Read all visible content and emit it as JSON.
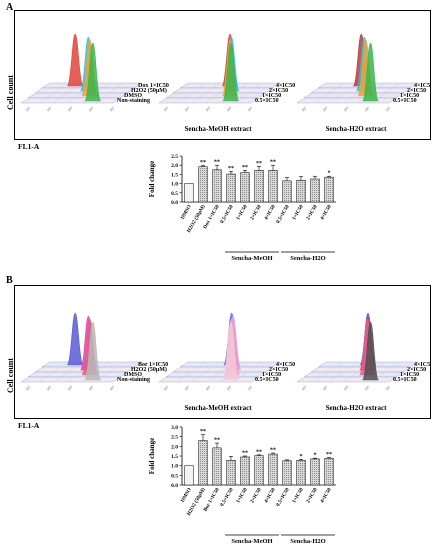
{
  "panels": [
    {
      "id": "A",
      "label": "A",
      "y_axis_label": "Cell count",
      "x_axis_label": "FL1-A",
      "flow": {
        "groups": [
          {
            "name": "control",
            "caption": "",
            "rows": [
              "Dox 1×IC50",
              "H2O2 (50μM)",
              "DMSO",
              "Non-staining"
            ],
            "peaks": [
              {
                "color": "#e0443c",
                "pos": 0.3
              },
              {
                "color": "#2bbfe0",
                "pos": 0.54
              },
              {
                "color": "#f0a23a",
                "pos": 0.64
              },
              {
                "color": "#3bb54a",
                "pos": 0.76
              }
            ]
          },
          {
            "name": "methanol",
            "caption": "Sencha-MeOH extract",
            "rows": [
              "4×IC50",
              "2×IC50",
              "1×IC50",
              "0.5×IC50"
            ],
            "peaks": [
              {
                "color": "#e0443c",
                "pos": 0.5
              },
              {
                "color": "#2bbfe0",
                "pos": 0.6
              },
              {
                "color": "#f0a23a",
                "pos": 0.67
              },
              {
                "color": "#3bb54a",
                "pos": 0.76
              }
            ]
          },
          {
            "name": "water",
            "caption": "Sencha-H2O extract",
            "rows": [
              "4×IC50",
              "2×IC50",
              "1×IC50",
              "0.5×IC50"
            ],
            "peaks": [
              {
                "color": "#c0383a",
                "pos": 0.42
              },
              {
                "color": "#2bbfe0",
                "pos": 0.54
              },
              {
                "color": "#f0a23a",
                "pos": 0.64
              },
              {
                "color": "#3bb54a",
                "pos": 0.78
              }
            ]
          }
        ],
        "bar_chart": {
          "type": "bar",
          "ylabel": "Fold change",
          "ylim": [
            0.0,
            2.5
          ],
          "yticks": [
            "0.0",
            "0.5",
            "1.0",
            "1.5",
            "2.0",
            "2.5"
          ],
          "categories": [
            "DMSO",
            "H2O2 (50μM)",
            "Dox 1×IC50",
            "0.5×IC50",
            "1×IC50",
            "2×IC50",
            "4×IC50",
            "0.5×IC50",
            "1×IC50",
            "2×IC50",
            "4×IC50"
          ],
          "values": [
            1.0,
            1.92,
            1.75,
            1.52,
            1.6,
            1.72,
            1.72,
            1.15,
            1.18,
            1.25,
            1.35
          ],
          "errors": [
            0.0,
            0.06,
            0.25,
            0.15,
            0.12,
            0.22,
            0.28,
            0.18,
            0.2,
            0.15,
            0.05
          ],
          "sig": [
            "",
            "**",
            "**",
            "**",
            "**",
            "**",
            "**",
            "",
            "",
            "",
            "*"
          ],
          "group_labels": [
            {
              "text": "Sencha-MeOH",
              "from": 3,
              "to": 6
            },
            {
              "text": "Sencha-H2O",
              "from": 7,
              "to": 10
            }
          ]
        }
      }
    },
    {
      "id": "B",
      "label": "B",
      "y_axis_label": "Cell count",
      "x_axis_label": "FL1-A",
      "flow": {
        "groups": [
          {
            "name": "control",
            "caption": "",
            "rows": [
              "Bor 1×IC50",
              "H2O2 (50μM)",
              "DMSO",
              "Non-staining"
            ],
            "peaks": [
              {
                "color": "#5a5ad6",
                "pos": 0.3
              },
              {
                "color": "#e040c8",
                "pos": 0.54
              },
              {
                "color": "#e0607e",
                "pos": 0.64
              },
              {
                "color": "#b8b8b8",
                "pos": 0.76
              }
            ]
          },
          {
            "name": "methanol",
            "caption": "Sencha-MeOH extract",
            "rows": [
              "4×IC50",
              "2×IC50",
              "1×IC50",
              "0.5×IC50"
            ],
            "peaks": [
              {
                "color": "#6a6ae0",
                "pos": 0.52
              },
              {
                "color": "#e0a0e0",
                "pos": 0.62
              },
              {
                "color": "#f0a0c8",
                "pos": 0.69
              },
              {
                "color": "#f4c8d8",
                "pos": 0.76
              }
            ]
          },
          {
            "name": "water",
            "caption": "Sencha-H2O extract",
            "rows": [
              "4×IC50",
              "2×IC50",
              "1×IC50",
              "0.5×IC50"
            ],
            "peaks": [
              {
                "color": "#5a5ad6",
                "pos": 0.5
              },
              {
                "color": "#c04070",
                "pos": 0.58
              },
              {
                "color": "#e06090",
                "pos": 0.66
              },
              {
                "color": "#505050",
                "pos": 0.78
              }
            ]
          }
        ],
        "bar_chart": {
          "type": "bar",
          "ylabel": "Fold change",
          "ylim": [
            0.0,
            3.0
          ],
          "yticks": [
            "0.0",
            "0.5",
            "1.0",
            "1.5",
            "2.0",
            "2.5",
            "3.0"
          ],
          "categories": [
            "DMSO",
            "H2O2 (50μM)",
            "Bor 1×IC50",
            "0.5×IC50",
            "1×IC50",
            "2×IC50",
            "4×IC50",
            "0.5×IC50",
            "1×IC50",
            "2×IC50",
            "4×IC50"
          ],
          "values": [
            1.0,
            2.3,
            1.92,
            1.28,
            1.45,
            1.52,
            1.6,
            1.25,
            1.28,
            1.35,
            1.38
          ],
          "errors": [
            0.0,
            0.3,
            0.25,
            0.2,
            0.05,
            0.04,
            0.05,
            0.05,
            0.05,
            0.04,
            0.04
          ],
          "sig": [
            "",
            "**",
            "**",
            "",
            "**",
            "**",
            "**",
            "",
            "*",
            "*",
            "**"
          ],
          "group_labels": [
            {
              "text": "Sencha-MeOH",
              "from": 3,
              "to": 6
            },
            {
              "text": "Sencha-H2O",
              "from": 7,
              "to": 10
            }
          ]
        }
      }
    }
  ],
  "chart_data": [
    {
      "type": "bar",
      "ylabel": "Fold change",
      "ylim": [
        0.0,
        2.5
      ],
      "categories": [
        "DMSO",
        "H2O2 (50μM)",
        "Dox 1×IC50",
        "0.5×IC50",
        "1×IC50",
        "2×IC50",
        "4×IC50",
        "0.5×IC50",
        "1×IC50",
        "2×IC50",
        "4×IC50"
      ],
      "values": [
        1.0,
        1.92,
        1.75,
        1.52,
        1.6,
        1.72,
        1.72,
        1.15,
        1.18,
        1.25,
        1.35
      ]
    },
    {
      "type": "bar",
      "ylabel": "Fold change",
      "ylim": [
        0.0,
        3.0
      ],
      "categories": [
        "DMSO",
        "H2O2 (50μM)",
        "Bor 1×IC50",
        "0.5×IC50",
        "1×IC50",
        "2×IC50",
        "4×IC50",
        "0.5×IC50",
        "1×IC50",
        "2×IC50",
        "4×IC50"
      ],
      "values": [
        1.0,
        2.3,
        1.92,
        1.28,
        1.45,
        1.52,
        1.6,
        1.25,
        1.28,
        1.35,
        1.38
      ]
    }
  ]
}
